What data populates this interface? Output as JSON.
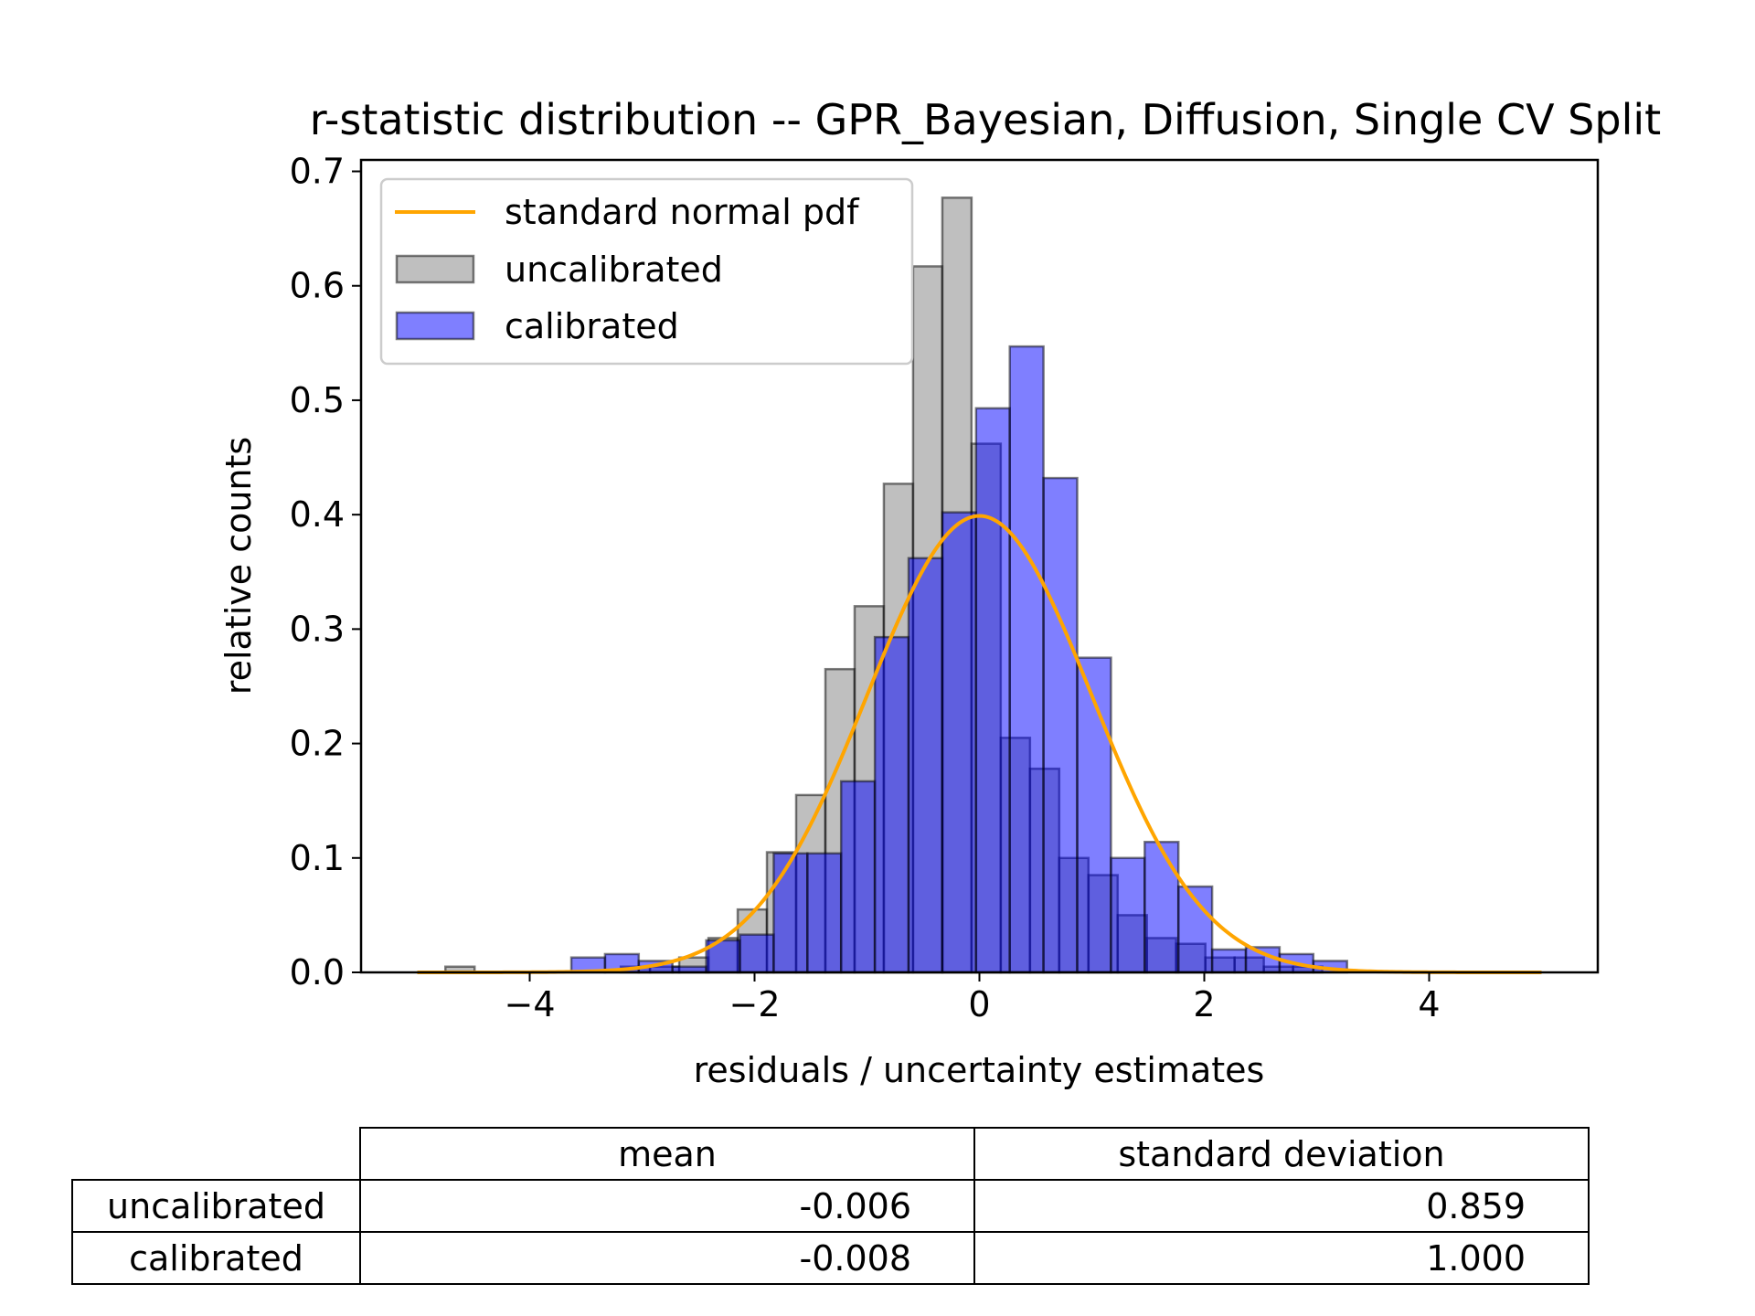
{
  "chart_data": {
    "type": "bar",
    "title": "r-statistic distribution -- GPR_Bayesian, Diffusion, Single CV Split",
    "xlabel": "residuals / uncertainty estimates",
    "ylabel": "relative counts",
    "xlim": [
      -5.5,
      5.5
    ],
    "ylim": [
      0,
      0.71
    ],
    "xticks": [
      -4,
      -2,
      0,
      2,
      4
    ],
    "xtick_labels": [
      "−4",
      "−2",
      "0",
      "2",
      "4"
    ],
    "yticks": [
      0.0,
      0.1,
      0.2,
      0.3,
      0.4,
      0.5,
      0.6,
      0.7
    ],
    "ytick_labels": [
      "0.0",
      "0.1",
      "0.2",
      "0.3",
      "0.4",
      "0.5",
      "0.6",
      "0.7"
    ],
    "legend_position": "top-left",
    "grid": false,
    "series": [
      {
        "name": "standard normal pdf",
        "kind": "line",
        "color": "#ffa500",
        "function": "standard normal pdf",
        "x_range": [
          -5,
          5
        ]
      },
      {
        "name": "uncalibrated",
        "kind": "histogram",
        "color": "#808080",
        "bin_edges": [
          -4.75,
          -4.49,
          -4.23,
          -3.97,
          -3.71,
          -3.45,
          -3.19,
          -2.93,
          -2.67,
          -2.41,
          -2.15,
          -1.89,
          -1.63,
          -1.37,
          -1.11,
          -0.85,
          -0.59,
          -0.33,
          -0.07,
          0.19,
          0.45,
          0.71,
          0.97,
          1.23,
          1.49,
          1.75,
          2.01,
          2.27,
          2.53,
          2.79,
          3.05,
          3.31
        ],
        "values": [
          0.005,
          0,
          0,
          0,
          0,
          0,
          0.005,
          0.005,
          0.013,
          0.03,
          0.055,
          0.105,
          0.155,
          0.265,
          0.32,
          0.427,
          0.617,
          0.677,
          0.462,
          0.205,
          0.178,
          0.1,
          0.085,
          0.05,
          0.03,
          0.025,
          0.013,
          0.013,
          0.005,
          0.005,
          0
        ]
      },
      {
        "name": "calibrated",
        "kind": "histogram",
        "color": "#0000ff",
        "bin_edges": [
          -3.63,
          -3.33,
          -3.03,
          -2.73,
          -2.43,
          -2.13,
          -1.83,
          -1.53,
          -1.23,
          -0.93,
          -0.63,
          -0.33,
          -0.03,
          0.27,
          0.57,
          0.87,
          1.17,
          1.47,
          1.77,
          2.07,
          2.37,
          2.67,
          2.97,
          3.27
        ],
        "values": [
          0.013,
          0.016,
          0.01,
          0.005,
          0.028,
          0.033,
          0.104,
          0.104,
          0.167,
          0.293,
          0.362,
          0.402,
          0.493,
          0.547,
          0.432,
          0.275,
          0.1,
          0.114,
          0.075,
          0.02,
          0.022,
          0.016,
          0.01
        ]
      }
    ]
  },
  "legend": {
    "items": [
      "standard normal pdf",
      "uncalibrated",
      "calibrated"
    ]
  },
  "table": {
    "col_headers": [
      "mean",
      "standard deviation"
    ],
    "rows": [
      {
        "label": "uncalibrated",
        "mean": "-0.006",
        "std": "0.859"
      },
      {
        "label": "calibrated",
        "mean": "-0.008",
        "std": "1.000"
      }
    ]
  }
}
